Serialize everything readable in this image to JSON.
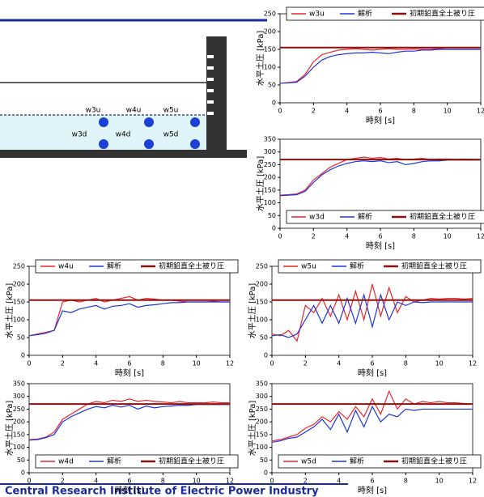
{
  "diagram": {
    "labels": [
      "w3u",
      "w4u",
      "w5u",
      "w3d",
      "w4d",
      "w5d"
    ]
  },
  "footer": "Central Research Institute of Electric Power Industry",
  "chart_data": [
    {
      "type": "line",
      "legend": "top",
      "x_label": "時刻 [s]",
      "y_label": "水平土圧 [kPa]",
      "x": [
        0,
        0.5,
        1,
        1.5,
        2,
        2.5,
        3,
        3.5,
        4,
        4.5,
        5,
        5.5,
        6,
        6.5,
        7,
        7.5,
        8,
        8.5,
        9,
        9.5,
        10,
        10.5,
        11,
        11.5,
        12
      ],
      "xlim": [
        0,
        12
      ],
      "xticks": [
        0,
        2,
        4,
        6,
        8,
        10,
        12
      ],
      "ylim": [
        0,
        250
      ],
      "yticks": [
        0,
        50,
        100,
        150,
        200,
        250
      ],
      "series": [
        {
          "name": "w3u",
          "color": "#e8262d",
          "values": [
            55,
            57,
            60,
            80,
            115,
            135,
            142,
            148,
            150,
            152,
            150,
            148,
            150,
            152,
            150,
            150,
            151,
            150,
            150,
            152,
            150,
            150,
            150,
            150,
            150
          ]
        },
        {
          "name": "解析",
          "color": "#2035d8",
          "values": [
            55,
            56,
            58,
            75,
            100,
            120,
            130,
            135,
            138,
            140,
            140,
            142,
            140,
            138,
            142,
            145,
            145,
            148,
            148,
            150,
            150,
            150,
            150,
            150,
            150
          ]
        },
        {
          "name": "初期鉛直全土被り圧",
          "color": "#8b1010",
          "values": [
            155,
            155,
            155,
            155,
            155,
            155,
            155,
            155,
            155,
            155,
            155,
            155,
            155,
            155,
            155,
            155,
            155,
            155,
            155,
            155,
            155,
            155,
            155,
            155,
            155
          ]
        }
      ]
    },
    {
      "type": "line",
      "legend": "bottom",
      "x_label": "時刻 [s]",
      "y_label": "水平土圧 [kPa]",
      "x": [
        0,
        0.5,
        1,
        1.5,
        2,
        2.5,
        3,
        3.5,
        4,
        4.5,
        5,
        5.5,
        6,
        6.5,
        7,
        7.5,
        8,
        8.5,
        9,
        9.5,
        10,
        10.5,
        11,
        11.5,
        12
      ],
      "xlim": [
        0,
        12
      ],
      "xticks": [
        0,
        2,
        4,
        6,
        8,
        10,
        12
      ],
      "ylim": [
        0,
        350
      ],
      "yticks": [
        0,
        50,
        100,
        150,
        200,
        250,
        300,
        350
      ],
      "series": [
        {
          "name": "w3d",
          "color": "#e8262d",
          "values": [
            130,
            132,
            135,
            150,
            190,
            215,
            240,
            255,
            270,
            275,
            280,
            275,
            278,
            272,
            275,
            270,
            272,
            275,
            270,
            272,
            272,
            270,
            272,
            270,
            270
          ]
        },
        {
          "name": "解析",
          "color": "#2035d8",
          "values": [
            128,
            130,
            132,
            145,
            180,
            210,
            230,
            245,
            255,
            262,
            265,
            262,
            265,
            258,
            262,
            250,
            255,
            262,
            265,
            265,
            268,
            268,
            268,
            268,
            268
          ]
        },
        {
          "name": "初期鉛直全土被り圧",
          "color": "#8b1010",
          "values": [
            270,
            270,
            270,
            270,
            270,
            270,
            270,
            270,
            270,
            270,
            270,
            270,
            270,
            270,
            270,
            270,
            270,
            270,
            270,
            270,
            270,
            270,
            270,
            270,
            270
          ]
        }
      ]
    },
    {
      "type": "line",
      "legend": "top",
      "x_label": "時刻 [s]",
      "y_label": "水平土圧 [kPa]",
      "x": [
        0,
        0.5,
        1,
        1.5,
        2,
        2.5,
        3,
        3.5,
        4,
        4.5,
        5,
        5.5,
        6,
        6.5,
        7,
        7.5,
        8,
        8.5,
        9,
        9.5,
        10,
        10.5,
        11,
        11.5,
        12
      ],
      "xlim": [
        0,
        12
      ],
      "xticks": [
        0,
        2,
        4,
        6,
        8,
        10,
        12
      ],
      "ylim": [
        0,
        250
      ],
      "yticks": [
        0,
        50,
        100,
        150,
        200,
        250
      ],
      "series": [
        {
          "name": "w4u",
          "color": "#e8262d",
          "values": [
            55,
            60,
            65,
            70,
            150,
            155,
            150,
            155,
            160,
            150,
            155,
            160,
            165,
            155,
            160,
            158,
            155,
            155,
            152,
            150,
            150,
            150,
            152,
            150,
            150
          ]
        },
        {
          "name": "解析",
          "color": "#2035d8",
          "values": [
            55,
            58,
            62,
            70,
            125,
            120,
            130,
            135,
            140,
            130,
            138,
            140,
            145,
            135,
            140,
            142,
            145,
            148,
            148,
            150,
            150,
            150,
            150,
            150,
            150
          ]
        },
        {
          "name": "初期鉛直全土被り圧",
          "color": "#8b1010",
          "values": [
            155,
            155,
            155,
            155,
            155,
            155,
            155,
            155,
            155,
            155,
            155,
            155,
            155,
            155,
            155,
            155,
            155,
            155,
            155,
            155,
            155,
            155,
            155,
            155,
            155
          ]
        }
      ]
    },
    {
      "type": "line",
      "legend": "top",
      "x_label": "時刻 [s]",
      "y_label": "水平土圧 [kPa]",
      "x": [
        0,
        0.5,
        1,
        1.5,
        2,
        2.5,
        3,
        3.5,
        4,
        4.5,
        5,
        5.5,
        6,
        6.5,
        7,
        7.5,
        8,
        8.5,
        9,
        9.5,
        10,
        10.5,
        11,
        11.5,
        12
      ],
      "xlim": [
        0,
        12
      ],
      "xticks": [
        0,
        2,
        4,
        6,
        8,
        10,
        12
      ],
      "ylim": [
        0,
        250
      ],
      "yticks": [
        0,
        50,
        100,
        150,
        200,
        250
      ],
      "series": [
        {
          "name": "w5u",
          "color": "#e8262d",
          "values": [
            60,
            55,
            70,
            40,
            140,
            120,
            160,
            110,
            170,
            100,
            180,
            100,
            200,
            110,
            190,
            120,
            165,
            150,
            155,
            160,
            158,
            160,
            160,
            158,
            160
          ]
        },
        {
          "name": "解析",
          "color": "#2035d8",
          "values": [
            55,
            58,
            50,
            60,
            100,
            140,
            90,
            140,
            90,
            160,
            90,
            170,
            80,
            170,
            100,
            150,
            140,
            150,
            148,
            150,
            150,
            150,
            150,
            150,
            150
          ]
        },
        {
          "name": "初期鉛直全土被り圧",
          "color": "#8b1010",
          "values": [
            155,
            155,
            155,
            155,
            155,
            155,
            155,
            155,
            155,
            155,
            155,
            155,
            155,
            155,
            155,
            155,
            155,
            155,
            155,
            155,
            155,
            155,
            155,
            155,
            155
          ]
        }
      ]
    },
    {
      "type": "line",
      "legend": "bottom",
      "x_label": "時刻 [s]",
      "y_label": "水平土圧 [kPa]",
      "x": [
        0,
        0.5,
        1,
        1.5,
        2,
        2.5,
        3,
        3.5,
        4,
        4.5,
        5,
        5.5,
        6,
        6.5,
        7,
        7.5,
        8,
        8.5,
        9,
        9.5,
        10,
        10.5,
        11,
        11.5,
        12
      ],
      "xlim": [
        0,
        12
      ],
      "xticks": [
        0,
        2,
        4,
        6,
        8,
        10,
        12
      ],
      "ylim": [
        0,
        350
      ],
      "yticks": [
        0,
        50,
        100,
        150,
        200,
        250,
        300,
        350
      ],
      "series": [
        {
          "name": "w4d",
          "color": "#e8262d",
          "values": [
            130,
            132,
            140,
            160,
            210,
            230,
            250,
            270,
            280,
            275,
            285,
            280,
            290,
            280,
            285,
            280,
            278,
            275,
            280,
            275,
            275,
            275,
            278,
            275,
            275
          ]
        },
        {
          "name": "解析",
          "color": "#2035d8",
          "values": [
            128,
            130,
            138,
            150,
            200,
            220,
            235,
            250,
            260,
            255,
            265,
            258,
            265,
            250,
            262,
            255,
            260,
            262,
            265,
            265,
            268,
            268,
            268,
            268,
            268
          ]
        },
        {
          "name": "初期鉛直全土被り圧",
          "color": "#8b1010",
          "values": [
            270,
            270,
            270,
            270,
            270,
            270,
            270,
            270,
            270,
            270,
            270,
            270,
            270,
            270,
            270,
            270,
            270,
            270,
            270,
            270,
            270,
            270,
            270,
            270,
            270
          ]
        }
      ]
    },
    {
      "type": "line",
      "legend": "bottom",
      "x_label": "時刻 [s]",
      "y_label": "水平土圧 [kPa]",
      "x": [
        0,
        0.5,
        1,
        1.5,
        2,
        2.5,
        3,
        3.5,
        4,
        4.5,
        5,
        5.5,
        6,
        6.5,
        7,
        7.5,
        8,
        8.5,
        9,
        9.5,
        10,
        10.5,
        11,
        11.5,
        12
      ],
      "xlim": [
        0,
        12
      ],
      "xticks": [
        0,
        2,
        4,
        6,
        8,
        10,
        12
      ],
      "ylim": [
        0,
        350
      ],
      "yticks": [
        0,
        50,
        100,
        150,
        200,
        250,
        300,
        350
      ],
      "series": [
        {
          "name": "w5d",
          "color": "#e8262d",
          "values": [
            125,
            130,
            140,
            150,
            175,
            190,
            220,
            200,
            240,
            210,
            260,
            220,
            290,
            230,
            320,
            250,
            290,
            270,
            280,
            275,
            280,
            275,
            275,
            272,
            270
          ]
        },
        {
          "name": "解析",
          "color": "#2035d8",
          "values": [
            120,
            125,
            135,
            140,
            160,
            180,
            210,
            170,
            230,
            160,
            245,
            180,
            260,
            200,
            230,
            220,
            250,
            245,
            250,
            250,
            250,
            250,
            250,
            250,
            250
          ]
        },
        {
          "name": "初期鉛直全土被り圧",
          "color": "#8b1010",
          "values": [
            270,
            270,
            270,
            270,
            270,
            270,
            270,
            270,
            270,
            270,
            270,
            270,
            270,
            270,
            270,
            270,
            270,
            270,
            270,
            270,
            270,
            270,
            270,
            270,
            270
          ]
        }
      ]
    }
  ]
}
